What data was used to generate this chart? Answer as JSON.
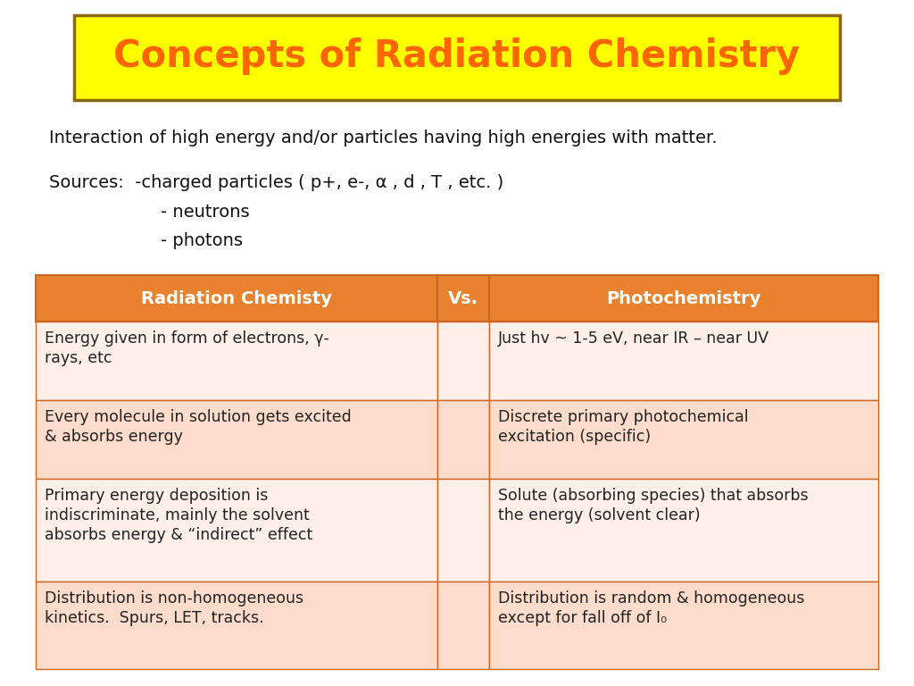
{
  "title": "Concepts of Radiation Chemistry",
  "title_bg": "#FFFF00",
  "title_border": "#8B6914",
  "title_color": "#FF6600",
  "bg_color": "#FFFFFF",
  "line1": "Interaction of high energy and/or particles having high energies with matter.",
  "line2": "Sources:  -charged particles ( p+, e-, α , d , T , etc. )",
  "line3": "                    - neutrons",
  "line4": "                    - photons",
  "table_header_bg": "#E8822E",
  "table_row_bg_odd": "#FDDCCC",
  "table_row_bg_even": "#FEF0E8",
  "table_header_color": "#FFFFFF",
  "table_text_color": "#222222",
  "col1_header": "Radiation Chemisty",
  "col2_header": "Vs.",
  "col3_header": "Photochemistry",
  "rows": [
    [
      "Energy given in form of electrons, γ-\nrays, etc",
      "",
      "Just hv ~ 1-5 eV, near IR – near UV"
    ],
    [
      "Every molecule in solution gets excited\n& absorbs energy",
      "",
      "Discrete primary photochemical\nexcitation (specific)"
    ],
    [
      "Primary energy deposition is\nindiscriminate, mainly the solvent\nabsorbs energy & “indirect” effect",
      "",
      "Solute (absorbing species) that absorbs\nthe energy (solvent clear)"
    ],
    [
      "Distribution is non-homogeneous\nkinetics.  Spurs, LET, tracks.",
      "",
      "Distribution is random & homogeneous\nexcept for fall off of I₀"
    ]
  ]
}
